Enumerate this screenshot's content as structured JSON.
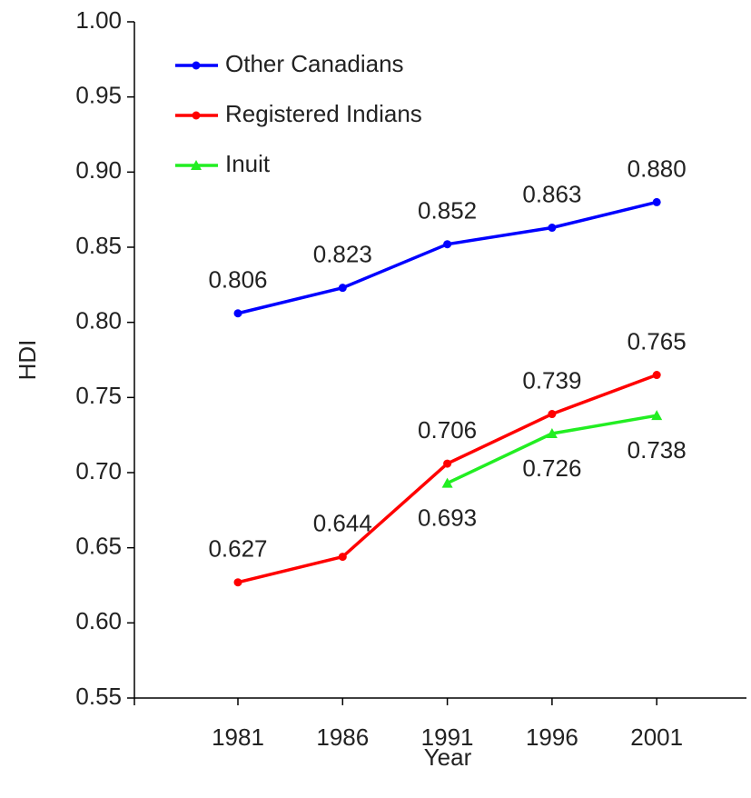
{
  "chart_data": {
    "type": "line",
    "x_label": "Year",
    "y_label": "HDI",
    "categories": [
      "1981",
      "1986",
      "1991",
      "1996",
      "2001"
    ],
    "ylim": [
      0.55,
      1.0
    ],
    "yticks": [
      {
        "value": 0.55,
        "label": "0.55"
      },
      {
        "value": 0.6,
        "label": "0.60"
      },
      {
        "value": 0.65,
        "label": "0.65"
      },
      {
        "value": 0.7,
        "label": "0.70"
      },
      {
        "value": 0.75,
        "label": "0.75"
      },
      {
        "value": 0.8,
        "label": "0.80"
      },
      {
        "value": 0.85,
        "label": "0.85"
      },
      {
        "value": 0.9,
        "label": "0.90"
      },
      {
        "value": 0.95,
        "label": "0.95"
      },
      {
        "value": 1.0,
        "label": "1.00"
      }
    ],
    "legend": "top-left",
    "series": [
      {
        "name": "Other Canadians",
        "color": "#0000ff",
        "marker": "circle",
        "values": [
          0.806,
          0.823,
          0.852,
          0.863,
          0.88
        ],
        "value_labels": [
          "0.806",
          "0.823",
          "0.852",
          "0.863",
          "0.880"
        ]
      },
      {
        "name": "Registered Indians",
        "color": "#ff0000",
        "marker": "circle",
        "values": [
          0.627,
          0.644,
          0.706,
          0.739,
          0.765
        ],
        "value_labels": [
          "0.627",
          "0.644",
          "0.706",
          "0.739",
          "0.765"
        ]
      },
      {
        "name": "Inuit",
        "color": "#22ee22",
        "marker": "triangle",
        "values": [
          null,
          null,
          0.693,
          0.726,
          0.738
        ],
        "value_labels": [
          null,
          null,
          "0.693",
          "0.726",
          "0.738"
        ]
      }
    ]
  }
}
